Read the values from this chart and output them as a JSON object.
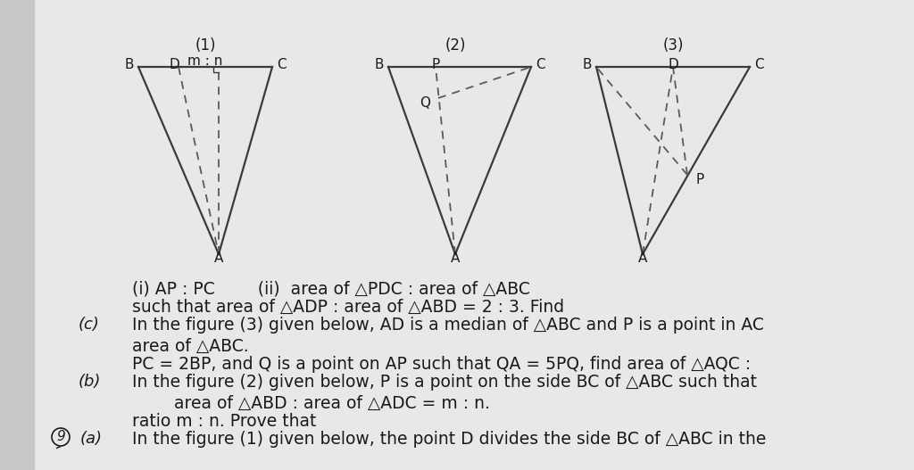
{
  "bg_color": "#e8e8e8",
  "text_color": "#1a1a1a",
  "line_color": "#3a3a3a",
  "dash_color": "#5a5a5a",
  "font_size_text": 13.5,
  "font_size_label": 11,
  "font_size_caption": 12,
  "font_size_part": 13,
  "left_margin_color": "#c8c8c8",
  "part_a_text1": "In the figure (1) given below, the point D divides the side BC of △ABC in the",
  "part_a_text2": "ratio m : n. Prove that",
  "part_a_text3": "area of △ABD : area of △ADC = m : n.",
  "part_b_text1": "In the figure (2) given below, P is a point on the side BC of △ABC such that",
  "part_b_text2": "PC = 2BP, and Q is a point on AP such that QA = 5PQ, find area of △AQC :",
  "part_b_text3": "area of △ABC.",
  "part_c_text1": "In the figure (3) given below, AD is a median of △ABC and P is a point in AC",
  "part_c_text2": "such that area of △ADP : area of △ABD = 2 : 3. Find",
  "part_c_text3": "(i) AP : PC        (ii)  area of △PDC : area of △ABC",
  "fig1_caption": "(1)",
  "fig2_caption": "(2)",
  "fig3_caption": "(3)"
}
